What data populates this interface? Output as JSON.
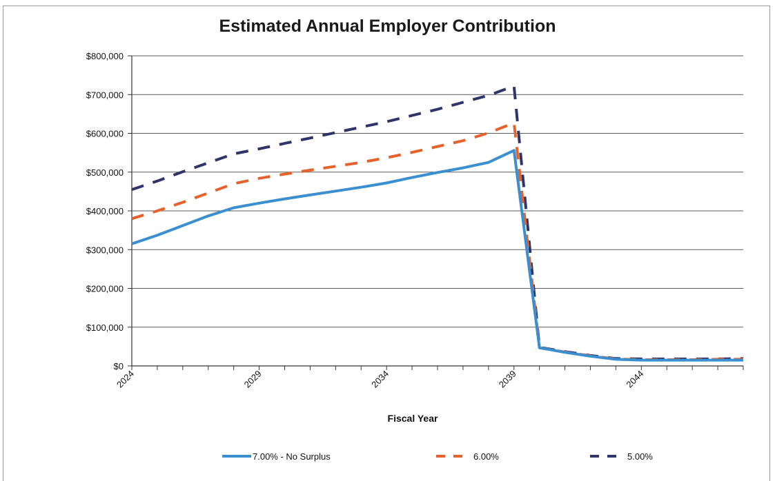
{
  "chart_data": {
    "type": "line",
    "title": "Estimated Annual Employer Contribution",
    "xlabel": "Fiscal Year",
    "ylabel": "",
    "ylim": [
      0,
      800000
    ],
    "xlim": [
      2024,
      2048
    ],
    "y_tick_labels": [
      "$0",
      "$100,000",
      "$200,000",
      "$300,000",
      "$400,000",
      "$500,000",
      "$600,000",
      "$700,000",
      "$800,000"
    ],
    "x_tick_labels": [
      "2024",
      "2029",
      "2034",
      "2039",
      "2044"
    ],
    "x_tick_values": [
      2024,
      2029,
      2034,
      2039,
      2044
    ],
    "grid": true,
    "legend_position": "bottom",
    "x": [
      2024,
      2025,
      2026,
      2027,
      2028,
      2029,
      2030,
      2031,
      2032,
      2033,
      2034,
      2035,
      2036,
      2037,
      2038,
      2039,
      2040,
      2041,
      2042,
      2043,
      2044,
      2045,
      2046,
      2047,
      2048
    ],
    "series": [
      {
        "name": "7.00% - No Surplus",
        "color": "#3a8fd0",
        "style": "solid",
        "values": [
          315000,
          337000,
          362000,
          387000,
          408000,
          420000,
          431000,
          441000,
          451000,
          461000,
          472000,
          486000,
          499000,
          511000,
          525000,
          556000,
          47000,
          35000,
          25000,
          17000,
          15000,
          15000,
          15000,
          15000,
          15000
        ]
      },
      {
        "name": "6.00%",
        "color": "#e5622b",
        "style": "dashed",
        "values": [
          380000,
          400000,
          422000,
          446000,
          470000,
          484000,
          495000,
          505000,
          515000,
          525000,
          537000,
          551000,
          566000,
          581000,
          601000,
          627000,
          47000,
          36000,
          26000,
          18000,
          16000,
          16000,
          16000,
          17000,
          17000
        ]
      },
      {
        "name": "5.00%",
        "color": "#2e3568",
        "style": "dashed",
        "values": [
          455000,
          477000,
          501000,
          524000,
          547000,
          560000,
          574000,
          588000,
          602000,
          616000,
          630000,
          646000,
          662000,
          680000,
          698000,
          722000,
          48000,
          37000,
          27000,
          19000,
          18000,
          18000,
          18000,
          18000,
          19000
        ]
      }
    ]
  }
}
